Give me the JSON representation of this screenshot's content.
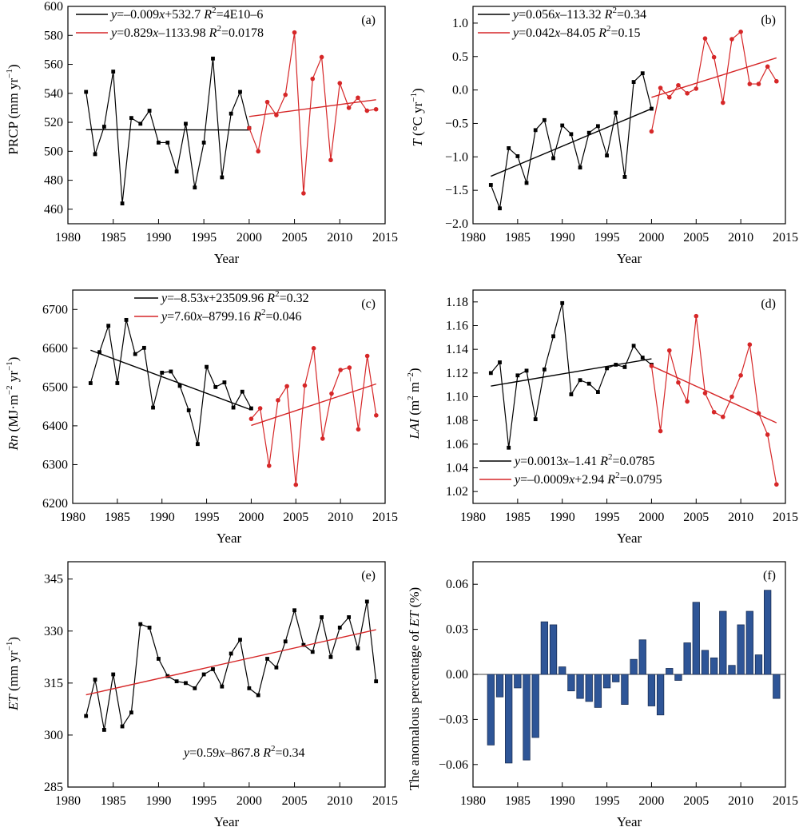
{
  "chart_data": [
    {
      "id": "a",
      "type": "line",
      "panel_label": "(a)",
      "xlabel": "Year",
      "ylabel": "PRCP (mm yr⁻¹)",
      "xlim": [
        1980,
        2015
      ],
      "ylim": [
        450,
        600
      ],
      "xticks": [
        1980,
        1985,
        1990,
        1995,
        2000,
        2005,
        2010,
        2015
      ],
      "yticks": [
        460,
        480,
        500,
        520,
        540,
        560,
        580,
        600
      ],
      "grid": false,
      "legend_position": "top-left",
      "series": [
        {
          "color": "#000000",
          "marker": "square",
          "x": [
            1982,
            1983,
            1984,
            1985,
            1986,
            1987,
            1988,
            1989,
            1990,
            1991,
            1992,
            1993,
            1994,
            1995,
            1996,
            1997,
            1998,
            1999,
            2000
          ],
          "y": [
            541,
            498,
            517,
            555,
            464,
            523,
            519,
            528,
            506,
            506,
            486,
            519,
            475,
            506,
            564,
            482,
            526,
            541,
            516
          ],
          "trend": {
            "x": [
              1982,
              2000
            ],
            "y": [
              514.9,
              514.7
            ],
            "label": "y=–0.009x+532.7 R²=4E10–6"
          }
        },
        {
          "color": "#d62728",
          "marker": "circle",
          "x": [
            2000,
            2001,
            2002,
            2003,
            2004,
            2005,
            2006,
            2007,
            2008,
            2009,
            2010,
            2011,
            2012,
            2013,
            2014
          ],
          "y": [
            516,
            500,
            534,
            525,
            539,
            582,
            471,
            550,
            565,
            494,
            547,
            530,
            537,
            528,
            529
          ],
          "trend": {
            "x": [
              2000,
              2014
            ],
            "y": [
              524,
              535.6
            ],
            "label": "y=0.829x–1133.98 R²=0.0178"
          }
        }
      ]
    },
    {
      "id": "b",
      "type": "line",
      "panel_label": "(b)",
      "xlabel": "Year",
      "ylabel": "T (°C yr⁻¹)",
      "xlim": [
        1980,
        2015
      ],
      "ylim": [
        -2.0,
        1.25
      ],
      "xticks": [
        1980,
        1985,
        1990,
        1995,
        2000,
        2005,
        2010,
        2015
      ],
      "yticks": [
        -2.0,
        -1.5,
        -1.0,
        -0.5,
        0.0,
        0.5,
        1.0
      ],
      "grid": false,
      "legend_position": "top-left",
      "series": [
        {
          "color": "#000000",
          "marker": "square",
          "x": [
            1982,
            1983,
            1984,
            1985,
            1986,
            1987,
            1988,
            1989,
            1990,
            1991,
            1992,
            1993,
            1994,
            1995,
            1996,
            1997,
            1998,
            1999,
            2000
          ],
          "y": [
            -1.42,
            -1.77,
            -0.87,
            -0.99,
            -1.39,
            -0.6,
            -0.45,
            -1.02,
            -0.53,
            -0.66,
            -1.16,
            -0.64,
            -0.54,
            -0.98,
            -0.34,
            -1.3,
            0.12,
            0.25,
            -0.28
          ],
          "trend": {
            "x": [
              1982,
              2000
            ],
            "y": [
              -1.29,
              -0.28
            ],
            "label": "y=0.056x–113.32 R²=0.34"
          }
        },
        {
          "color": "#d62728",
          "marker": "circle",
          "x": [
            2000,
            2001,
            2002,
            2003,
            2004,
            2005,
            2006,
            2007,
            2008,
            2009,
            2010,
            2011,
            2012,
            2013,
            2014
          ],
          "y": [
            -0.62,
            0.03,
            -0.11,
            0.07,
            -0.05,
            0.02,
            0.77,
            0.49,
            -0.19,
            0.76,
            0.87,
            0.09,
            0.09,
            0.35,
            0.13
          ],
          "trend": {
            "x": [
              2000,
              2014
            ],
            "y": [
              -0.11,
              0.48
            ],
            "label": "y=0.042x–84.05 R²=0.15"
          }
        }
      ]
    },
    {
      "id": "c",
      "type": "line",
      "panel_label": "(c)",
      "xlabel": "Year",
      "ylabel": "Rn (MJ·m⁻² yr⁻¹)",
      "xlim": [
        1980,
        2015
      ],
      "ylim": [
        6200,
        6750
      ],
      "xticks": [
        1980,
        1985,
        1990,
        1995,
        2000,
        2005,
        2010,
        2015
      ],
      "yticks": [
        6200,
        6300,
        6400,
        6500,
        6600,
        6700
      ],
      "grid": false,
      "legend_position": "top-center",
      "series": [
        {
          "color": "#000000",
          "marker": "square",
          "x": [
            1982,
            1983,
            1984,
            1985,
            1986,
            1987,
            1988,
            1989,
            1990,
            1991,
            1992,
            1993,
            1994,
            1995,
            1996,
            1997,
            1998,
            1999,
            2000
          ],
          "y": [
            6510,
            6590,
            6658,
            6510,
            6673,
            6585,
            6601,
            6447,
            6537,
            6540,
            6503,
            6440,
            6353,
            6552,
            6500,
            6512,
            6447,
            6488,
            6445
          ],
          "trend": {
            "x": [
              1982,
              2000
            ],
            "y": [
              6595,
              6441
            ],
            "label": "y=–8.53x+23509.96 R²=0.32"
          }
        },
        {
          "color": "#d62728",
          "marker": "circle",
          "x": [
            2000,
            2001,
            2002,
            2003,
            2004,
            2005,
            2006,
            2007,
            2008,
            2009,
            2010,
            2011,
            2012,
            2013,
            2014
          ],
          "y": [
            6418,
            6445,
            6297,
            6466,
            6502,
            6248,
            6504,
            6600,
            6367,
            6483,
            6544,
            6550,
            6391,
            6580,
            6427
          ],
          "trend": {
            "x": [
              2000,
              2014
            ],
            "y": [
              6401,
              6508
            ],
            "label": "y=7.60x–8799.16 R²=0.046"
          }
        }
      ]
    },
    {
      "id": "d",
      "type": "line",
      "panel_label": "(d)",
      "xlabel": "Year",
      "ylabel": "LAI (m² m⁻²)",
      "xlim": [
        1980,
        2015
      ],
      "ylim": [
        1.01,
        1.19
      ],
      "xticks": [
        1980,
        1985,
        1990,
        1995,
        2000,
        2005,
        2010,
        2015
      ],
      "yticks": [
        1.02,
        1.04,
        1.06,
        1.08,
        1.1,
        1.12,
        1.14,
        1.16,
        1.18
      ],
      "grid": false,
      "legend_position": "bottom-left",
      "series": [
        {
          "color": "#000000",
          "marker": "square",
          "x": [
            1982,
            1983,
            1984,
            1985,
            1986,
            1987,
            1988,
            1989,
            1990,
            1991,
            1992,
            1993,
            1994,
            1995,
            1996,
            1997,
            1998,
            1999,
            2000
          ],
          "y": [
            1.12,
            1.129,
            1.057,
            1.118,
            1.122,
            1.081,
            1.123,
            1.151,
            1.179,
            1.102,
            1.114,
            1.111,
            1.104,
            1.124,
            1.127,
            1.125,
            1.143,
            1.133,
            1.127
          ],
          "trend": {
            "x": [
              1982,
              2000
            ],
            "y": [
              1.109,
              1.132
            ],
            "label": "y=0.0013x–1.41 R²=0.0785"
          }
        },
        {
          "color": "#d62728",
          "marker": "circle",
          "x": [
            2000,
            2001,
            2002,
            2003,
            2004,
            2005,
            2006,
            2007,
            2008,
            2009,
            2010,
            2011,
            2012,
            2013,
            2014
          ],
          "y": [
            1.126,
            1.071,
            1.139,
            1.112,
            1.096,
            1.168,
            1.103,
            1.087,
            1.083,
            1.1,
            1.118,
            1.144,
            1.086,
            1.068,
            1.026
          ],
          "trend": {
            "x": [
              2000,
              2014
            ],
            "y": [
              1.126,
              1.078
            ],
            "label": "y=–0.0009x+2.94 R²=0.0795"
          }
        }
      ]
    },
    {
      "id": "e",
      "type": "line",
      "panel_label": "(e)",
      "xlabel": "Year",
      "ylabel": "ET (mm yr⁻¹)",
      "xlim": [
        1980,
        2015
      ],
      "ylim": [
        285,
        350
      ],
      "xticks": [
        1980,
        1985,
        1990,
        1995,
        2000,
        2005,
        2010,
        2015
      ],
      "yticks": [
        285,
        300,
        315,
        330,
        345
      ],
      "grid": false,
      "series": [
        {
          "color": "#000000",
          "marker": "square",
          "x": [
            1982,
            1983,
            1984,
            1985,
            1986,
            1987,
            1988,
            1989,
            1990,
            1991,
            1992,
            1993,
            1994,
            1995,
            1996,
            1997,
            1998,
            1999,
            2000,
            2001,
            2002,
            2003,
            2004,
            2005,
            2006,
            2007,
            2008,
            2009,
            2010,
            2011,
            2012,
            2013,
            2014
          ],
          "y": [
            305.5,
            316,
            301.5,
            317.5,
            302.5,
            306.5,
            332,
            331,
            322,
            317,
            315.5,
            315,
            313.5,
            317.5,
            319,
            314,
            323.5,
            327.5,
            313.5,
            311.5,
            322,
            319.5,
            327,
            336,
            326,
            324,
            334,
            322.5,
            331,
            334,
            325,
            338.5,
            315.5
          ],
          "trend": {
            "x": [
              1982,
              2014
            ],
            "y": [
              311.6,
              330.4
            ],
            "label": "y=0.59x–867.8 R²=0.34",
            "color": "#d62728"
          }
        }
      ]
    },
    {
      "id": "f",
      "type": "bar",
      "panel_label": "(f)",
      "xlabel": "Year",
      "ylabel": "The anomalous percentage of ET (%)",
      "xlim": [
        1980,
        2015
      ],
      "ylim": [
        -0.075,
        0.075
      ],
      "xticks": [
        1980,
        1985,
        1990,
        1995,
        2000,
        2005,
        2010,
        2015
      ],
      "yticks": [
        -0.06,
        -0.03,
        0.0,
        0.03,
        0.06
      ],
      "grid": false,
      "series": [
        {
          "color": "#2e5597",
          "x": [
            1982,
            1983,
            1984,
            1985,
            1986,
            1987,
            1988,
            1989,
            1990,
            1991,
            1992,
            1993,
            1994,
            1995,
            1996,
            1997,
            1998,
            1999,
            2000,
            2001,
            2002,
            2003,
            2004,
            2005,
            2006,
            2007,
            2008,
            2009,
            2010,
            2011,
            2012,
            2013,
            2014
          ],
          "values": [
            -0.047,
            -0.015,
            -0.059,
            -0.009,
            -0.057,
            -0.042,
            0.035,
            0.033,
            0.005,
            -0.011,
            -0.016,
            -0.018,
            -0.022,
            -0.009,
            -0.005,
            -0.02,
            0.01,
            0.023,
            -0.021,
            -0.027,
            0.004,
            -0.004,
            0.021,
            0.048,
            0.016,
            0.011,
            0.042,
            0.006,
            0.033,
            0.042,
            0.013,
            0.056,
            -0.016
          ]
        }
      ]
    }
  ]
}
